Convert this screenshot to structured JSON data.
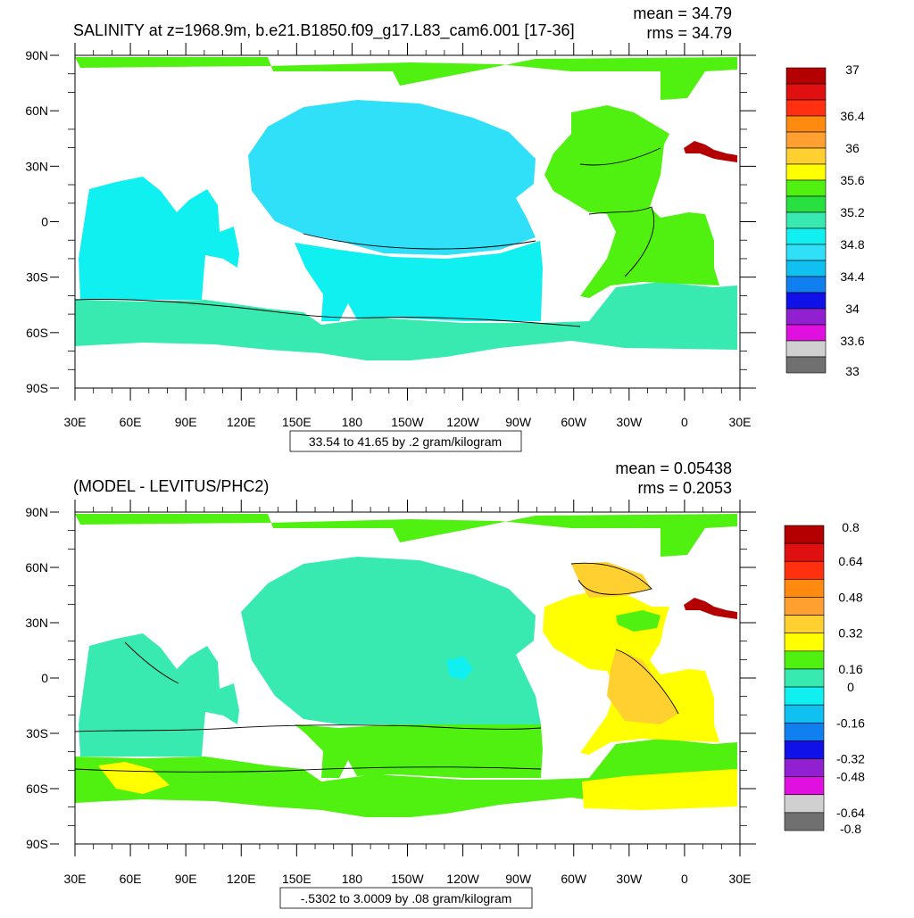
{
  "palette": {
    "land": "#ffffff",
    "frame": "#000000",
    "contour": "#000000"
  },
  "panels": [
    {
      "id": "salinity",
      "title": "SALINITY at z=1968.9m, b.e21.B1850.f09_g17.L83_cam6.001 [17-36]",
      "mean": "mean = 34.79",
      "rms": "rms = 34.79",
      "range_label": "33.54 to 41.65 by .2 gram/kilogram",
      "lat_ticks": [
        "90N",
        "60N",
        "30N",
        "0",
        "30S",
        "60S",
        "90S"
      ],
      "lon_ticks": [
        "30E",
        "60E",
        "90E",
        "120E",
        "150E",
        "180",
        "150W",
        "120W",
        "90W",
        "60W",
        "30W",
        "0",
        "30E"
      ],
      "colorbar": {
        "colors": [
          "#b40000",
          "#e01010",
          "#ff3010",
          "#ff8a10",
          "#ffa030",
          "#ffd030",
          "#ffff00",
          "#50f010",
          "#28e040",
          "#38eab0",
          "#10f0f0",
          "#30e0f8",
          "#10c0f0",
          "#1080f0",
          "#1010e8",
          "#9020d0",
          "#e010e0",
          "#d0d0d0",
          "#707070"
        ],
        "labels": [
          "37",
          "36.4",
          "36",
          "35.6",
          "35.2",
          "34.8",
          "34.4",
          "34",
          "33.6",
          "33"
        ],
        "label_boundaries": [
          0,
          3,
          5,
          7,
          9,
          11,
          13,
          15,
          17,
          19
        ]
      },
      "regions": [
        {
          "name": "arctic",
          "color": "#50f010"
        },
        {
          "name": "north-pacific",
          "color": "#30e0f8"
        },
        {
          "name": "south-pacific",
          "color": "#10f0f0"
        },
        {
          "name": "indian-ocean",
          "color": "#10f0f0"
        },
        {
          "name": "southern-ocean",
          "color": "#38eab0"
        },
        {
          "name": "atlantic",
          "color": "#50f010"
        },
        {
          "name": "mediterranean",
          "color": "#b40000"
        }
      ]
    },
    {
      "id": "difference",
      "title": "(MODEL - LEVITUS/PHC2)",
      "mean": "mean = 0.05438",
      "rms": "rms = 0.2053",
      "range_label": "-.5302 to 3.0009 by .08 gram/kilogram",
      "lat_ticks": [
        "90N",
        "60N",
        "30N",
        "0",
        "30S",
        "60S",
        "90S"
      ],
      "lon_ticks": [
        "30E",
        "60E",
        "90E",
        "120E",
        "150E",
        "180",
        "150W",
        "120W",
        "90W",
        "60W",
        "30W",
        "0",
        "30E"
      ],
      "colorbar": {
        "colors": [
          "#b40000",
          "#e01010",
          "#ff3010",
          "#ff8a10",
          "#ffa030",
          "#ffd030",
          "#ffff00",
          "#50f010",
          "#38eab0",
          "#10f0f0",
          "#10c0f0",
          "#1080f0",
          "#1010e8",
          "#9020d0",
          "#e010e0",
          "#d0d0d0",
          "#707070"
        ],
        "labels": [
          "0.8",
          "0.64",
          "0.48",
          "0.32",
          "0.16",
          "0",
          "-0.16",
          "-0.32",
          "-0.48",
          "-0.64",
          "-0.8"
        ],
        "label_boundaries": [
          0,
          2,
          4,
          6,
          8,
          9,
          11,
          13,
          14,
          16,
          17
        ]
      },
      "regions": [
        {
          "name": "arctic",
          "color": "#50f010"
        },
        {
          "name": "north-pacific",
          "color": "#38eab0"
        },
        {
          "name": "south-pacific",
          "color": "#50f010"
        },
        {
          "name": "indian-ocean",
          "color": "#38eab0"
        },
        {
          "name": "southern-ocean",
          "color": "#50f010"
        },
        {
          "name": "atlantic",
          "color": "#ffff00"
        },
        {
          "name": "mediterranean",
          "color": "#b40000"
        }
      ]
    }
  ]
}
